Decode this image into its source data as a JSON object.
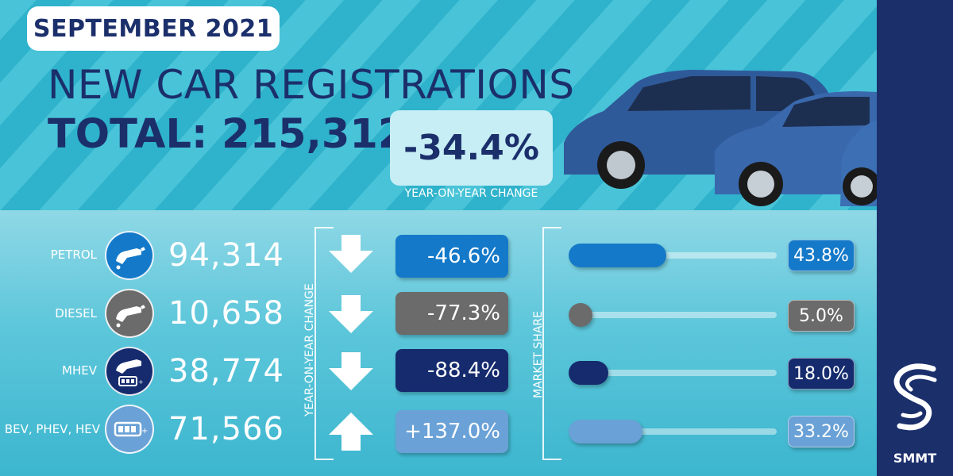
{
  "header": {
    "date": "SEPTEMBER 2021",
    "headline": "NEW CAR REGISTRATIONS",
    "total": "TOTAL: 215,312",
    "yoy_value": "-34.4%",
    "yoy_caption": "YEAR-ON-YEAR CHANGE"
  },
  "colors": {
    "navy": "#1b2f6b",
    "petrol": "#1479c8",
    "diesel": "#6b6b6b",
    "mhev": "#152b6e",
    "bev": "#6aa1d6"
  },
  "section_labels": {
    "yoy": "YEAR-ON-YEAR CHANGE",
    "share": "MARKET SHARE"
  },
  "rows": [
    {
      "label": "PETROL",
      "count": "94,314",
      "change": "-46.6%",
      "direction": "down",
      "share": "43.8%",
      "share_value": 43.8,
      "icon": "fuel-pump-icon"
    },
    {
      "label": "DIESEL",
      "count": "10,658",
      "change": "-77.3%",
      "direction": "down",
      "share": "5.0%",
      "share_value": 5.0,
      "icon": "fuel-pump-icon"
    },
    {
      "label": "MHEV",
      "count": "38,774",
      "change": "-88.4%",
      "direction": "down",
      "share": "18.0%",
      "share_value": 18.0,
      "icon": "fuel-pump-battery-icon"
    },
    {
      "label": "BEV, PHEV, HEV",
      "count": "71,566",
      "change": "+137.0%",
      "direction": "up",
      "share": "33.2%",
      "share_value": 33.2,
      "icon": "battery-icon"
    }
  ],
  "logo": {
    "text": "SMMT"
  }
}
